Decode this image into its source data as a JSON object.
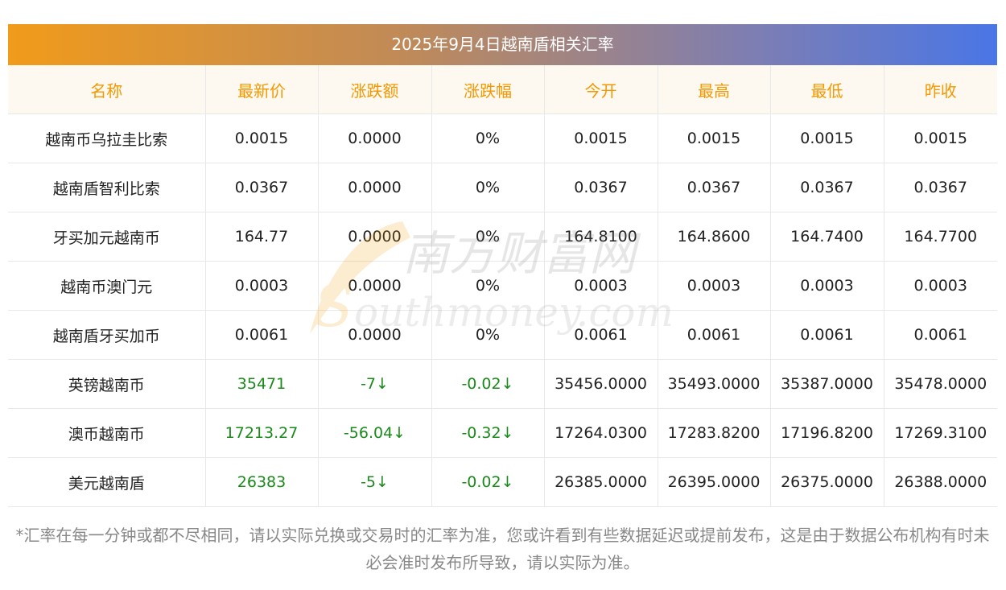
{
  "title": "2025年9月4日越南盾相关汇率",
  "headers": [
    "名称",
    "最新价",
    "涨跌额",
    "涨跌幅",
    "今开",
    "最高",
    "最低",
    "昨收"
  ],
  "rows": [
    {
      "name": "越南币乌拉圭比索",
      "latest": "0.0015",
      "change": "0.0000",
      "pct": "0%",
      "open": "0.0015",
      "high": "0.0015",
      "low": "0.0015",
      "prev": "0.0015",
      "trend": "flat"
    },
    {
      "name": "越南盾智利比索",
      "latest": "0.0367",
      "change": "0.0000",
      "pct": "0%",
      "open": "0.0367",
      "high": "0.0367",
      "low": "0.0367",
      "prev": "0.0367",
      "trend": "flat"
    },
    {
      "name": "牙买加元越南币",
      "latest": "164.77",
      "change": "0.0000",
      "pct": "0%",
      "open": "164.8100",
      "high": "164.8600",
      "low": "164.7400",
      "prev": "164.7700",
      "trend": "flat"
    },
    {
      "name": "越南币澳门元",
      "latest": "0.0003",
      "change": "0.0000",
      "pct": "0%",
      "open": "0.0003",
      "high": "0.0003",
      "low": "0.0003",
      "prev": "0.0003",
      "trend": "flat"
    },
    {
      "name": "越南盾牙买加币",
      "latest": "0.0061",
      "change": "0.0000",
      "pct": "0%",
      "open": "0.0061",
      "high": "0.0061",
      "low": "0.0061",
      "prev": "0.0061",
      "trend": "flat"
    },
    {
      "name": "英镑越南币",
      "latest": "35471",
      "change": "-7↓",
      "pct": "-0.02↓",
      "open": "35456.0000",
      "high": "35493.0000",
      "low": "35387.0000",
      "prev": "35478.0000",
      "trend": "down"
    },
    {
      "name": "澳币越南币",
      "latest": "17213.27",
      "change": "-56.04↓",
      "pct": "-0.32↓",
      "open": "17264.0300",
      "high": "17283.8200",
      "low": "17196.8200",
      "prev": "17269.3100",
      "trend": "down"
    },
    {
      "name": "美元越南盾",
      "latest": "26383",
      "change": "-5↓",
      "pct": "-0.02↓",
      "open": "26385.0000",
      "high": "26395.0000",
      "low": "26375.0000",
      "prev": "26388.0000",
      "trend": "down"
    }
  ],
  "watermark": {
    "cn": "南方财富网",
    "en": "outhmoney.com",
    "letter": "S"
  },
  "note": "*汇率在每一分钟或都不尽相同，请以实际兑换或交易时的汇率为准，您或许看到有些数据延迟或提前发布，这是由于数据公布机构有时未必会准时发布所导致，请以实际为准。",
  "colors": {
    "header_text": "#f39800",
    "header_bg": "#fdf9f1",
    "down_text": "#1a8a1a",
    "title_gradient_start": "#f19b1a",
    "title_gradient_end": "#4a76e6"
  }
}
